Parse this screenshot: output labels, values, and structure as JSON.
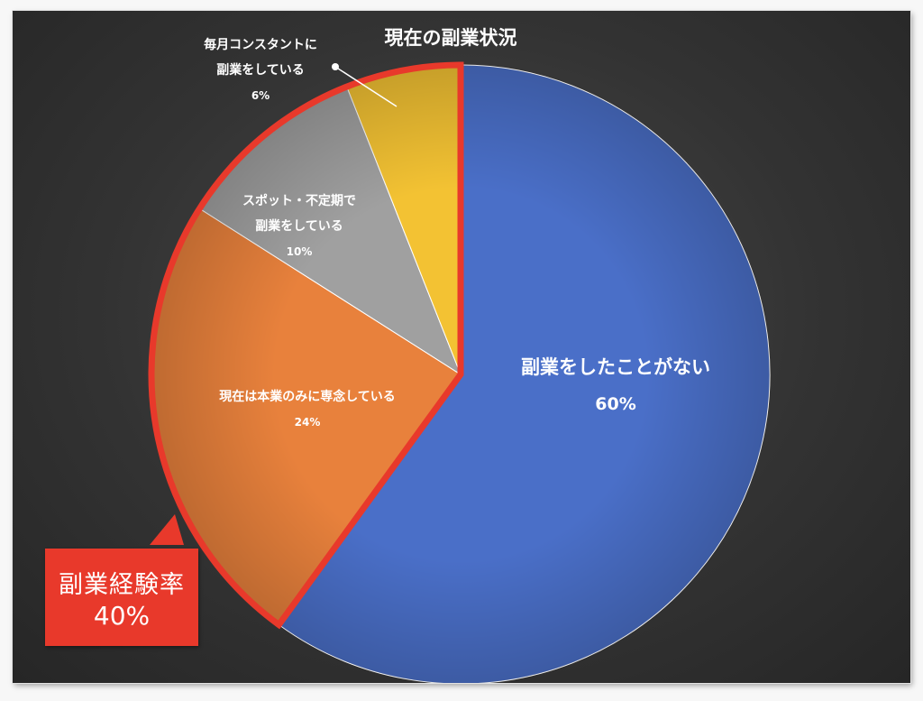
{
  "chart_data": {
    "type": "pie",
    "title": "現在の副業状況",
    "slices": [
      {
        "label_lines": [
          "副業をしたことがない"
        ],
        "value": 60,
        "value_label": "60%",
        "color": "#4a6fc8"
      },
      {
        "label_lines": [
          "現在は本業のみに専念している"
        ],
        "value": 24,
        "value_label": "24%",
        "color": "#e8813c"
      },
      {
        "label_lines": [
          "スポット・不定期で",
          "副業をしている"
        ],
        "value": 10,
        "value_label": "10%",
        "color": "#a0a0a0"
      },
      {
        "label_lines": [
          "毎月コンスタントに",
          "副業をしている"
        ],
        "value": 6,
        "value_label": "6%",
        "color": "#f3c233"
      }
    ],
    "highlight": {
      "slices": [
        1,
        2,
        3
      ],
      "outline_color": "#e8392b",
      "label": "副業経験率",
      "value_label": "40%"
    }
  }
}
